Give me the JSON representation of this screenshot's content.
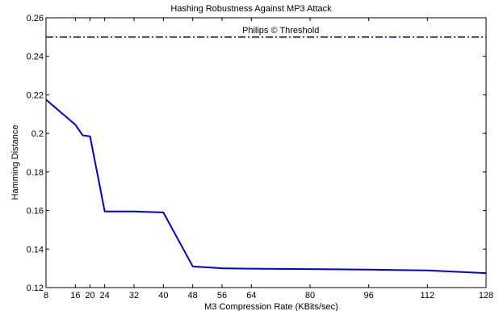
{
  "chart_data": {
    "type": "line",
    "title": "Hashing Robustness Against MP3 Attack",
    "xlabel": "M3 Compression Rate (KBits/sec)",
    "ylabel": "Hamming Distance",
    "xlim": [
      8,
      128
    ],
    "ylim": [
      0.12,
      0.26
    ],
    "xticks": [
      8,
      16,
      20,
      24,
      32,
      40,
      48,
      56,
      64,
      80,
      96,
      112,
      128
    ],
    "yticks": [
      0.12,
      0.14,
      0.16,
      0.18,
      0.2,
      0.22,
      0.24,
      0.26
    ],
    "ytick_labels": [
      "0.12",
      "0.14",
      "0.16",
      "0.18",
      "0.2",
      "0.22",
      "0.24",
      "0.26"
    ],
    "grid": false,
    "series": [
      {
        "color": "#0000dd",
        "style": "solid",
        "x": [
          8,
          16,
          18,
          20,
          24,
          32,
          40,
          48,
          56,
          64,
          80,
          96,
          112,
          128
        ],
        "y": [
          0.2175,
          0.2045,
          0.199,
          0.1985,
          0.1595,
          0.1595,
          0.159,
          0.131,
          0.13,
          0.1298,
          0.1296,
          0.1293,
          0.1289,
          0.1275
        ]
      }
    ],
    "reference_line": {
      "label": "Philips © Threshold",
      "y": 0.25,
      "color": "#0000dd",
      "style": "dash-dot"
    }
  }
}
